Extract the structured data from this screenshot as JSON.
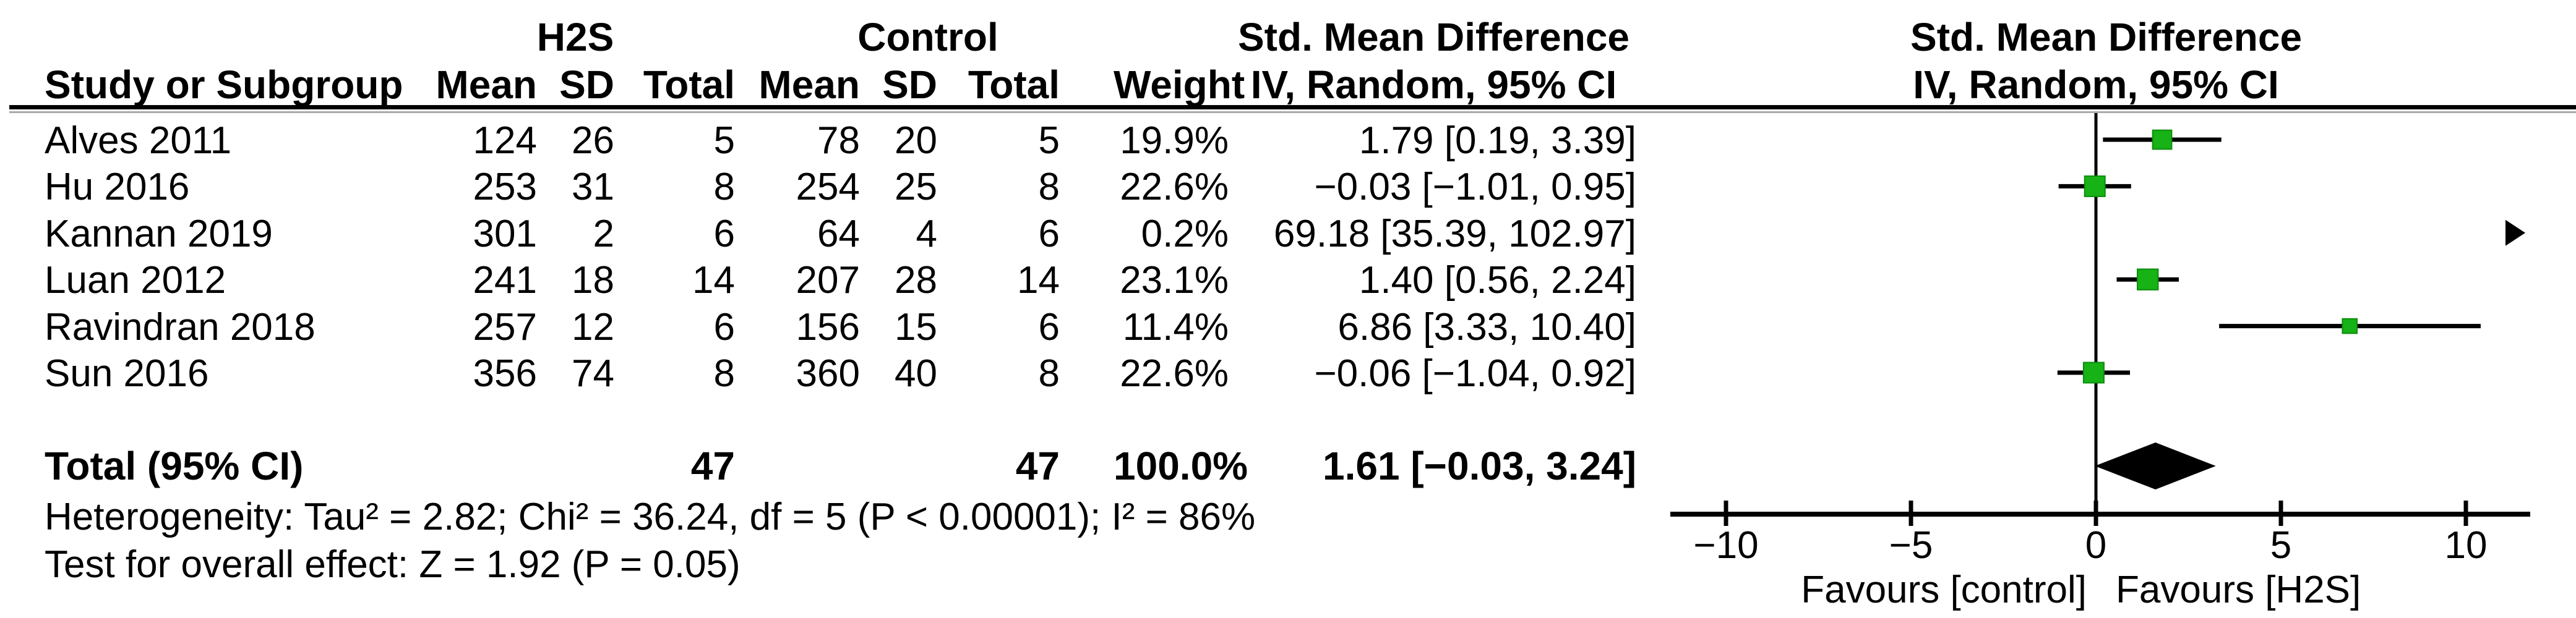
{
  "table": {
    "group_headers": {
      "h2s": "H2S",
      "control": "Control"
    },
    "col_headers": {
      "study": "Study or Subgroup",
      "mean1": "Mean",
      "sd1": "SD",
      "total1": "Total",
      "mean2": "Mean",
      "sd2": "SD",
      "total2": "Total",
      "weight": "Weight",
      "smd_line1": "Std. Mean Difference",
      "smd_line2": "IV, Random, 95% CI"
    },
    "plot_headers": {
      "line1": "Std. Mean Difference",
      "line2": "IV, Random, 95% CI"
    },
    "rows": [
      {
        "study": "Alves 2011",
        "mean1": "124",
        "sd1": "26",
        "total1": "5",
        "mean2": "78",
        "sd2": "20",
        "total2": "5",
        "weight": "19.9%",
        "ci": "1.79 [0.19, 3.39]"
      },
      {
        "study": "Hu 2016",
        "mean1": "253",
        "sd1": "31",
        "total1": "8",
        "mean2": "254",
        "sd2": "25",
        "total2": "8",
        "weight": "22.6%",
        "ci": "−0.03 [−1.01, 0.95]"
      },
      {
        "study": "Kannan 2019",
        "mean1": "301",
        "sd1": "2",
        "total1": "6",
        "mean2": "64",
        "sd2": "4",
        "total2": "6",
        "weight": "0.2%",
        "ci": "69.18 [35.39, 102.97]"
      },
      {
        "study": "Luan 2012",
        "mean1": "241",
        "sd1": "18",
        "total1": "14",
        "mean2": "207",
        "sd2": "28",
        "total2": "14",
        "weight": "23.1%",
        "ci": "1.40 [0.56, 2.24]"
      },
      {
        "study": "Ravindran 2018",
        "mean1": "257",
        "sd1": "12",
        "total1": "6",
        "mean2": "156",
        "sd2": "15",
        "total2": "6",
        "weight": "11.4%",
        "ci": "6.86 [3.33, 10.40]"
      },
      {
        "study": "Sun 2016",
        "mean1": "356",
        "sd1": "74",
        "total1": "8",
        "mean2": "360",
        "sd2": "40",
        "total2": "8",
        "weight": "22.6%",
        "ci": "−0.06 [−1.04, 0.92]"
      }
    ],
    "total_row": {
      "label": "Total (95% CI)",
      "total1": "47",
      "total2": "47",
      "weight": "100.0%",
      "ci": "1.61 [−0.03, 3.24]"
    },
    "footer": {
      "heterogeneity": "Heterogeneity: Tau² = 2.82; Chi² = 36.24, df = 5 (P < 0.00001); I² = 86%",
      "overall_effect": "Test for overall effect: Z = 1.92 (P = 0.05)"
    }
  },
  "chart_data": {
    "type": "forest",
    "effect_measure": "Std. Mean Difference",
    "method": "IV, Random, 95% CI",
    "studies": [
      {
        "name": "Alves 2011",
        "estimate": 1.79,
        "ci_low": 0.19,
        "ci_high": 3.39,
        "weight_pct": 19.9
      },
      {
        "name": "Hu 2016",
        "estimate": -0.03,
        "ci_low": -1.01,
        "ci_high": 0.95,
        "weight_pct": 22.6
      },
      {
        "name": "Kannan 2019",
        "estimate": 69.18,
        "ci_low": 35.39,
        "ci_high": 102.97,
        "weight_pct": 0.2
      },
      {
        "name": "Luan 2012",
        "estimate": 1.4,
        "ci_low": 0.56,
        "ci_high": 2.24,
        "weight_pct": 23.1
      },
      {
        "name": "Ravindran 2018",
        "estimate": 6.86,
        "ci_low": 3.33,
        "ci_high": 10.4,
        "weight_pct": 11.4
      },
      {
        "name": "Sun 2016",
        "estimate": -0.06,
        "ci_low": -1.04,
        "ci_high": 0.92,
        "weight_pct": 22.6
      }
    ],
    "total": {
      "name": "Total (95% CI)",
      "estimate": 1.61,
      "ci_low": -0.03,
      "ci_high": 3.24,
      "weight_pct": 100.0
    },
    "x_ticks": [
      -10,
      -5,
      0,
      5,
      10
    ],
    "xlim": [
      -11.5,
      11.7
    ],
    "axis_label_left": "Favours [control]",
    "axis_label_right": "Favours [H2S]",
    "marker_color": "#16B216",
    "marker_border_color": "#0E8C0E",
    "line_color": "#000000",
    "offscale_right": [
      "Kannan 2019"
    ]
  }
}
